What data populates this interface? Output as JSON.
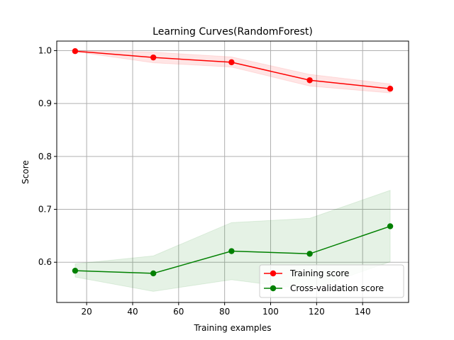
{
  "chart_data": {
    "type": "line",
    "title": "Learning Curves(RandomForest)",
    "xlabel": "Training examples",
    "ylabel": "Score",
    "xlim": [
      7,
      160
    ],
    "ylim": [
      0.524,
      1.018
    ],
    "xticks": [
      20,
      40,
      60,
      80,
      100,
      120,
      140
    ],
    "yticks": [
      0.6,
      0.7,
      0.8,
      0.9,
      1.0
    ],
    "ytick_labels": [
      "0.6",
      "0.7",
      "0.8",
      "0.9",
      "1.0"
    ],
    "grid": true,
    "legend_position": "lower-right",
    "x": [
      15,
      49,
      83,
      117,
      152
    ],
    "series": [
      {
        "name": "Training score",
        "color": "#ff0000",
        "band_color": "#ff0000",
        "values": [
          0.999,
          0.987,
          0.978,
          0.944,
          0.928
        ],
        "lower": [
          0.998,
          0.977,
          0.969,
          0.933,
          0.92
        ],
        "upper": [
          1.0,
          0.997,
          0.988,
          0.955,
          0.937
        ]
      },
      {
        "name": "Cross-validation score",
        "color": "#008000",
        "band_color": "#008000",
        "values": [
          0.584,
          0.579,
          0.621,
          0.616,
          0.668
        ],
        "lower": [
          0.572,
          0.545,
          0.567,
          0.548,
          0.601
        ],
        "upper": [
          0.597,
          0.612,
          0.675,
          0.683,
          0.736
        ]
      }
    ]
  }
}
